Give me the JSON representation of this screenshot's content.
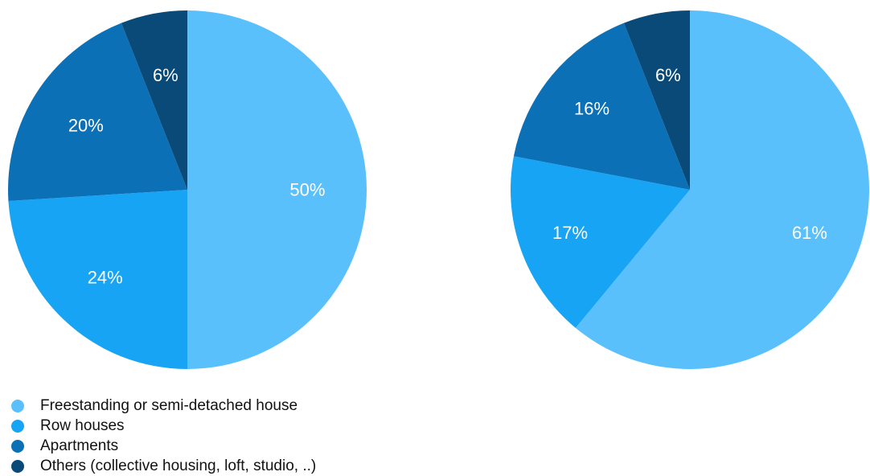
{
  "chart_data": [
    {
      "type": "pie",
      "categories": [
        "Freestanding or semi-detached house",
        "Row houses",
        "Apartments",
        "Others (collective housing, loft, studio, ..)"
      ],
      "values": [
        50,
        24,
        20,
        6
      ],
      "labels": [
        "50%",
        "24%",
        "20%",
        "6%"
      ]
    },
    {
      "type": "pie",
      "categories": [
        "Freestanding or semi-detached house",
        "Row houses",
        "Apartments",
        "Others (collective housing, loft, studio, ..)"
      ],
      "values": [
        61,
        17,
        16,
        6
      ],
      "labels": [
        "61%",
        "17%",
        "16%",
        "6%"
      ]
    }
  ],
  "legend": {
    "placement": "bottom-left",
    "items": [
      {
        "label": "Freestanding or semi-detached house",
        "color": "#5ac0fc"
      },
      {
        "label": "Row houses",
        "color": "#17a4f5"
      },
      {
        "label": "Apartments",
        "color": "#0b70b5"
      },
      {
        "label": "Others (collective housing, loft, studio, ..)",
        "color": "#0a4a78"
      }
    ]
  },
  "colors": [
    "#5ac0fc",
    "#17a4f5",
    "#0b70b5",
    "#0a4a78"
  ]
}
